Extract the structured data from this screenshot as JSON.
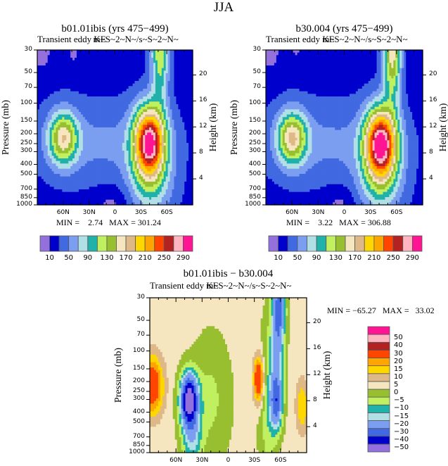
{
  "page_title": "JJA",
  "chart_data": [
    {
      "type": "contour",
      "title": "b01.01ibis (yrs 475−499)",
      "subtitle_left": "Transient eddy KE",
      "subtitle_right": "m~S~2~N~/s~S~2~N~",
      "ylabel": "Pressure (mb)",
      "ylabel_right": "Height (km)",
      "xlim": [
        90,
        -90
      ],
      "ylim": [
        1000,
        30
      ],
      "yscale": "log",
      "x_ticks": [
        {
          "v": 60,
          "label": "60N"
        },
        {
          "v": 30,
          "label": "30N"
        },
        {
          "v": 0,
          "label": "0"
        },
        {
          "v": -30,
          "label": "30S"
        },
        {
          "v": -60,
          "label": "60S"
        }
      ],
      "y_ticks": [
        "30",
        "50",
        "70",
        "100",
        "150",
        "200",
        "250",
        "300",
        "400",
        "500",
        "700",
        "850",
        "1000"
      ],
      "height_ticks": [
        "4",
        "8",
        "12",
        "16",
        "20"
      ],
      "min_label": "MIN =    2.74   MAX = 301.24",
      "field": {
        "base": 22,
        "features": [
          {
            "lat": -40,
            "p": 240,
            "amp": 262,
            "slat": 13,
            "slogp": 0.55
          },
          {
            "lat": 60,
            "p": 220,
            "amp": 128,
            "slat": 12,
            "slogp": 0.42
          },
          {
            "lat": -52,
            "p": 32,
            "amp": 105,
            "slat": 7,
            "slogp": 0.75
          },
          {
            "lat": 15,
            "p": 250,
            "amp": 32,
            "slat": 55,
            "slogp": 0.65
          },
          {
            "lat": -42,
            "p": 650,
            "amp": 55,
            "slat": 18,
            "slogp": 0.55
          },
          {
            "lat": 85,
            "p": 30,
            "amp": -22,
            "slat": 8,
            "slogp": 0.35
          },
          {
            "lat": 48,
            "p": 30,
            "amp": -16,
            "slat": 6,
            "slogp": 0.3
          },
          {
            "lat": 3,
            "p": 1000,
            "amp": -20,
            "slat": 14,
            "slogp": 0.3
          }
        ]
      },
      "colorbar": {
        "levels": [
          10,
          30,
          50,
          70,
          90,
          110,
          130,
          150,
          170,
          190,
          210,
          230,
          250,
          270,
          290
        ],
        "labels": [
          "10",
          "50",
          "90",
          "130",
          "170",
          "210",
          "250",
          "290"
        ],
        "colors": [
          "#9370DB",
          "#0000CD",
          "#4169E1",
          "#7B9EF0",
          "#B0E0E6",
          "#20B2AA",
          "#C0F060",
          "#98BF30",
          "#F5E6C0",
          "#DEB887",
          "#FFD700",
          "#FFA500",
          "#FF4500",
          "#B22222",
          "#FFB6C1",
          "#FF1493"
        ]
      }
    },
    {
      "type": "contour",
      "title": "b30.004 (yrs 475−499)",
      "subtitle_left": "Transient eddy KE",
      "subtitle_right": "m~S~2~N~/s~S~2~N~",
      "ylabel": "Pressure (mb)",
      "ylabel_right": "Height (km)",
      "xlim": [
        90,
        -90
      ],
      "ylim": [
        1000,
        30
      ],
      "yscale": "log",
      "x_ticks": [
        {
          "v": 60,
          "label": "60N"
        },
        {
          "v": 30,
          "label": "30N"
        },
        {
          "v": 0,
          "label": "0"
        },
        {
          "v": -30,
          "label": "30S"
        },
        {
          "v": -60,
          "label": "60S"
        }
      ],
      "y_ticks": [
        "30",
        "50",
        "70",
        "100",
        "150",
        "200",
        "250",
        "300",
        "400",
        "500",
        "700",
        "850",
        "1000"
      ],
      "height_ticks": [
        "4",
        "8",
        "12",
        "16",
        "20"
      ],
      "min_label": "MIN =    3.22   MAX = 306.88",
      "field": {
        "base": 22,
        "features": [
          {
            "lat": -42,
            "p": 250,
            "amp": 272,
            "slat": 13,
            "slogp": 0.55
          },
          {
            "lat": 60,
            "p": 220,
            "amp": 135,
            "slat": 12,
            "slogp": 0.42
          },
          {
            "lat": -55,
            "p": 32,
            "amp": 140,
            "slat": 7,
            "slogp": 0.75
          },
          {
            "lat": 15,
            "p": 250,
            "amp": 32,
            "slat": 55,
            "slogp": 0.65
          },
          {
            "lat": -42,
            "p": 650,
            "amp": 55,
            "slat": 18,
            "slogp": 0.55
          },
          {
            "lat": 85,
            "p": 30,
            "amp": -22,
            "slat": 8,
            "slogp": 0.35
          },
          {
            "lat": 55,
            "p": 30,
            "amp": -14,
            "slat": 5,
            "slogp": 0.25
          },
          {
            "lat": 5,
            "p": 1000,
            "amp": -20,
            "slat": 12,
            "slogp": 0.3
          }
        ]
      },
      "colorbar": {
        "levels": [
          10,
          30,
          50,
          70,
          90,
          110,
          130,
          150,
          170,
          190,
          210,
          230,
          250,
          270,
          290
        ],
        "labels": [
          "10",
          "50",
          "90",
          "130",
          "170",
          "210",
          "250",
          "290"
        ],
        "colors": [
          "#9370DB",
          "#0000CD",
          "#4169E1",
          "#7B9EF0",
          "#B0E0E6",
          "#20B2AA",
          "#C0F060",
          "#98BF30",
          "#F5E6C0",
          "#DEB887",
          "#FFD700",
          "#FFA500",
          "#FF4500",
          "#B22222",
          "#FFB6C1",
          "#FF1493"
        ]
      }
    },
    {
      "type": "contour",
      "title": "b01.01ibis − b30.004",
      "subtitle_left": "Transient eddy KE",
      "subtitle_right": "m~S~2~N~/s~S~2~N~",
      "ylabel": "Pressure (mb)",
      "ylabel_right": "Height (km)",
      "xlim": [
        90,
        -90
      ],
      "ylim": [
        1000,
        30
      ],
      "yscale": "log",
      "x_ticks": [
        {
          "v": 60,
          "label": "60N"
        },
        {
          "v": 30,
          "label": "30N"
        },
        {
          "v": 0,
          "label": "0"
        },
        {
          "v": -30,
          "label": "30S"
        },
        {
          "v": -60,
          "label": "60S"
        }
      ],
      "y_ticks": [
        "30",
        "50",
        "70",
        "100",
        "150",
        "200",
        "250",
        "300",
        "400",
        "500",
        "700",
        "850",
        "1000"
      ],
      "height_ticks": [
        "4",
        "8",
        "12",
        "16",
        "20"
      ],
      "min_label": "MIN = −65.27   MAX =   33.02",
      "field": {
        "base": 2,
        "features": [
          {
            "lat": 45,
            "p": 300,
            "amp": -58,
            "slat": 7,
            "slogp": 0.4
          },
          {
            "lat": 42,
            "p": 700,
            "amp": -18,
            "slat": 8,
            "slogp": 0.5
          },
          {
            "lat": 88,
            "p": 220,
            "amp": 28,
            "slat": 9,
            "slogp": 0.45
          },
          {
            "lat": -35,
            "p": 190,
            "amp": 32,
            "slat": 4,
            "slogp": 0.35
          },
          {
            "lat": -55,
            "p": 320,
            "amp": -32,
            "slat": 5,
            "slogp": 0.45
          },
          {
            "lat": -58,
            "p": 35,
            "amp": -32,
            "slat": 5,
            "slogp": 0.65
          },
          {
            "lat": -56,
            "p": 110,
            "amp": -16,
            "slat": 6,
            "slogp": 0.8
          },
          {
            "lat": -85,
            "p": 350,
            "amp": 13,
            "slat": 5,
            "slogp": 0.4
          },
          {
            "lat": 20,
            "p": 300,
            "amp": -8,
            "slat": 16,
            "slogp": 1.0
          },
          {
            "lat": -45,
            "p": 400,
            "amp": -9,
            "slat": 7,
            "slogp": 1.4
          }
        ]
      },
      "colorbar": {
        "levels": [
          -50,
          -40,
          -30,
          -20,
          -15,
          -10,
          -5,
          0,
          5,
          10,
          15,
          20,
          30,
          40,
          50
        ],
        "labels": [
          "−50",
          "−40",
          "−30",
          "−20",
          "−15",
          "−10",
          "−5",
          "0",
          "5",
          "10",
          "15",
          "20",
          "30",
          "40",
          "50"
        ],
        "colors": [
          "#9370DB",
          "#0000CD",
          "#4169E1",
          "#7B9EF0",
          "#B0E0E6",
          "#20B2AA",
          "#C0F060",
          "#98BF30",
          "#F5E6C0",
          "#DEB887",
          "#FFD700",
          "#FFA500",
          "#FF4500",
          "#B22222",
          "#FFB6C1",
          "#FF1493"
        ]
      }
    }
  ]
}
